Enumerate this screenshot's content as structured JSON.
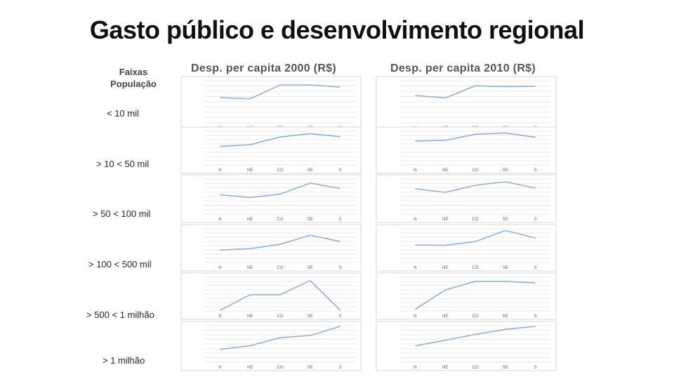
{
  "title": "Gasto público e desenvolvimento regional",
  "row_header": {
    "line1": "Faixas",
    "line2": "População"
  },
  "column_headers": [
    "Desp. per capita 2000 (R$)",
    "Desp. per capita 2010 (R$)"
  ],
  "row_labels": [
    "< 10 mil",
    "> 10 < 50 mil",
    "> 50 < 100 mil",
    "> 100 < 500 mil",
    "> 500 < 1 milhão",
    "> 1 milhão"
  ],
  "chart_data": [
    {
      "type": "line",
      "panel": "2000 / < 10 mil",
      "categories": [
        "N",
        "NE",
        "CO",
        "SE",
        "S"
      ],
      "values": [
        0.6,
        0.57,
        0.9,
        0.9,
        0.85
      ],
      "ylim": [
        0,
        1
      ]
    },
    {
      "type": "line",
      "panel": "2010 / < 10 mil",
      "categories": [
        "N",
        "NE",
        "CO",
        "SE",
        "S"
      ],
      "values": [
        0.65,
        0.59,
        0.88,
        0.86,
        0.87
      ],
      "ylim": [
        0,
        1
      ]
    },
    {
      "type": "line",
      "panel": "2000 / > 10 < 50 mil",
      "categories": [
        "N",
        "NE",
        "CO",
        "SE",
        "S"
      ],
      "values": [
        0.55,
        0.6,
        0.83,
        0.93,
        0.84
      ],
      "ylim": [
        0,
        1
      ]
    },
    {
      "type": "line",
      "panel": "2010 / > 10 < 50 mil",
      "categories": [
        "N",
        "NE",
        "CO",
        "SE",
        "S"
      ],
      "values": [
        0.71,
        0.73,
        0.91,
        0.95,
        0.82
      ],
      "ylim": [
        0,
        1
      ]
    },
    {
      "type": "line",
      "panel": "2000 / > 50 < 100 mil",
      "categories": [
        "N",
        "NE",
        "CO",
        "SE",
        "S"
      ],
      "values": [
        0.55,
        0.47,
        0.57,
        0.88,
        0.73
      ],
      "ylim": [
        0,
        1
      ]
    },
    {
      "type": "line",
      "panel": "2010 / > 50 < 100 mil",
      "categories": [
        "N",
        "NE",
        "CO",
        "SE",
        "S"
      ],
      "values": [
        0.72,
        0.62,
        0.82,
        0.92,
        0.74
      ],
      "ylim": [
        0,
        1
      ]
    },
    {
      "type": "line",
      "panel": "2000 / > 100 < 500 mil",
      "categories": [
        "N",
        "NE",
        "CO",
        "SE",
        "S"
      ],
      "values": [
        0.37,
        0.41,
        0.54,
        0.81,
        0.62
      ],
      "ylim": [
        0,
        1
      ]
    },
    {
      "type": "line",
      "panel": "2010 / > 100 < 500 mil",
      "categories": [
        "N",
        "NE",
        "CO",
        "SE",
        "S"
      ],
      "values": [
        0.52,
        0.51,
        0.62,
        0.95,
        0.73
      ],
      "ylim": [
        0,
        1
      ]
    },
    {
      "type": "line",
      "panel": "2000 / > 500 < 1 milhão",
      "categories": [
        "N",
        "NE",
        "CO",
        "SE",
        "S"
      ],
      "values": [
        0.02,
        0.48,
        0.48,
        0.9,
        0.02
      ],
      "ylim": [
        0,
        1
      ]
    },
    {
      "type": "line",
      "panel": "2010 / > 500 < 1 milhão",
      "categories": [
        "N",
        "NE",
        "CO",
        "SE",
        "S"
      ],
      "values": [
        0.05,
        0.62,
        0.88,
        0.88,
        0.83
      ],
      "ylim": [
        0,
        1
      ]
    },
    {
      "type": "line",
      "panel": "2000 / > 1 milhão",
      "categories": [
        "N",
        "NE",
        "CO",
        "SE",
        "S"
      ],
      "values": [
        0.35,
        0.45,
        0.67,
        0.73,
        0.98
      ],
      "ylim": [
        0,
        1
      ]
    },
    {
      "type": "line",
      "panel": "2010 / > 1 milhão",
      "categories": [
        "N",
        "NE",
        "CO",
        "SE",
        "S"
      ],
      "values": [
        0.45,
        0.6,
        0.76,
        0.9,
        0.98
      ],
      "ylim": [
        0,
        1
      ]
    }
  ]
}
